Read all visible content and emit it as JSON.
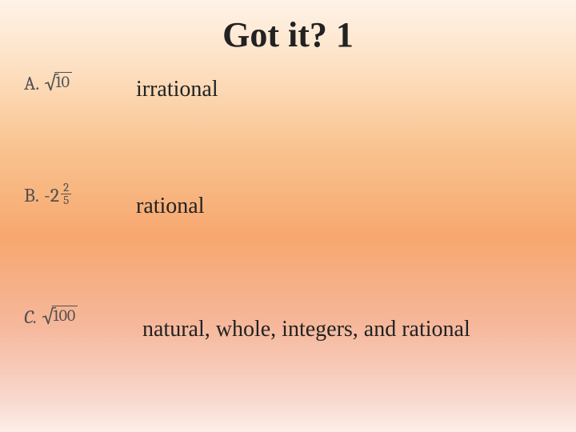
{
  "slide": {
    "title": "Got it? 1",
    "background_gradient": [
      "#fef3e8",
      "#fde1c4",
      "#f9c28e",
      "#f7a76f",
      "#f6b79a",
      "#f8d7cc",
      "#fceee8"
    ],
    "title_fontsize": 44,
    "body_fontsize": 28,
    "expr_fontsize": 24,
    "expr_color": "#4f4f4f",
    "text_color": "#111111",
    "font_family": "Times New Roman"
  },
  "items": {
    "a": {
      "letter": "A.",
      "radicand": "10",
      "answer": "irrational"
    },
    "b": {
      "letter": "B.",
      "coefficient": "-2",
      "frac_num": "2",
      "frac_den": "5",
      "answer": "rational"
    },
    "c": {
      "letter": "C.",
      "radicand": "100",
      "answer": "natural, whole, integers, and rational"
    }
  }
}
